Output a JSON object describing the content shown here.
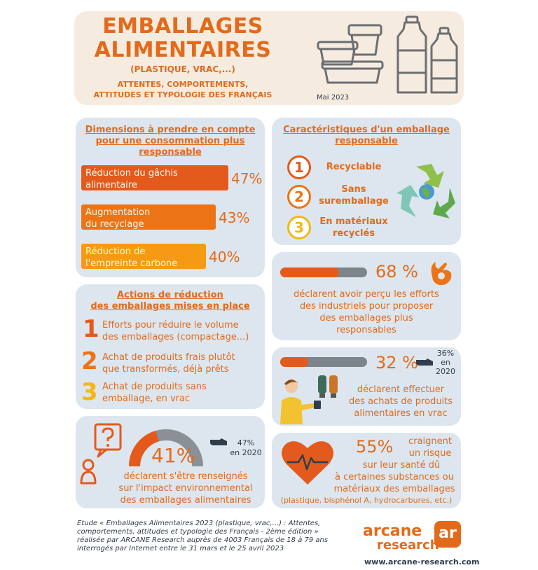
{
  "header": {
    "title_line1": "EMBALLAGES",
    "title_line2": "ALIMENTAIRES",
    "subtitle": "(PLASTIQUE, VRAC,...)",
    "tagline_line1": "ATTENTES, COMPORTEMENTS,",
    "tagline_line2": "ATTITUDES ET TYPOLOGIE DES FRANÇAIS",
    "date": "Mai 2023"
  },
  "dimensions": {
    "title_line1": "Dimensions à prendre en compte",
    "title_line2": "pour une consommation plus",
    "title_line3": "responsable",
    "items": [
      {
        "label_line1": "Réduction du gâchis",
        "label_line2": "alimentaire",
        "value": 47,
        "pct_label": "47%"
      },
      {
        "label_line1": "Augmentation",
        "label_line2": "du recyclage",
        "value": 43,
        "pct_label": "43%"
      },
      {
        "label_line1": "Réduction de",
        "label_line2": "l'empreinte carbone",
        "value": 40,
        "pct_label": "40%"
      }
    ]
  },
  "characteristics": {
    "title_line1": "Caractéristiques d'un emballage",
    "title_line2": "responsable",
    "items": [
      {
        "num": "1",
        "line1": "Recyclable",
        "line2": ""
      },
      {
        "num": "2",
        "line1": "Sans",
        "line2": "suremballage"
      },
      {
        "num": "3",
        "line1": "En matériaux",
        "line2": "recyclés"
      }
    ]
  },
  "perceived": {
    "value": 68,
    "pct_label": "68 %",
    "line1": "déclarent avoir perçu les efforts",
    "line2": "des industriels pour proposer",
    "line3": "des emballages plus",
    "line4": "responsables"
  },
  "actions": {
    "title_line1": "Actions de réduction",
    "title_line2": "des emballages mises en place",
    "items": [
      {
        "num": "1",
        "line1": "Efforts pour réduire le volume",
        "line2": "des emballages (compactage...)"
      },
      {
        "num": "2",
        "line1": "Achat de produits frais plutôt",
        "line2": "que transformés, déjà prêts"
      },
      {
        "num": "3",
        "line1": "Achat de produits sans",
        "line2": "emballage, en vrac"
      }
    ]
  },
  "bulk": {
    "value": 32,
    "pct_label": "32 %",
    "prev_pct": "36%",
    "prev_en": "en",
    "prev_year": "2020",
    "line1": "déclarent effectuer",
    "line2": "des achats de produits",
    "line3": "alimentaires en vrac"
  },
  "informed": {
    "value": 41,
    "pct_label": "41%",
    "prev_pct": "47%",
    "prev_year": "en 2020",
    "line1": "déclarent s'être renseignés",
    "line2": "sur l'impact environnemental",
    "line3": "des emballages alimentaires"
  },
  "health": {
    "pct_label": "55%",
    "line1": "craignent",
    "line2": "un risque",
    "line3": "sur leur santé dû",
    "line4": "à certaines substances ou",
    "line5": "matériaux des emballages",
    "line6": "(plastique, bisphénol A, hydrocarbures, etc.)"
  },
  "footer": {
    "line1": "Etude « Emballages Alimentaires 2023 (plastique, vrac,...) : Attentes,",
    "line2": "comportements, attitudes et typologie des Français - 2ème édition »",
    "line3": "réalisée par ARCANE Research auprès de 4003 Français de 18 à 79 ans",
    "line4": "interrogés par Internet entre le 31 mars et le 25 avril 2023",
    "logo_word1": "arcane",
    "logo_word2": "research",
    "logo_mark": "ar",
    "url": "www.arcane-research.com"
  },
  "colors": {
    "accent": "#e36a1a",
    "card": "#dde6ee",
    "header": "#f6ebdf",
    "dark": "#2f3d4c"
  }
}
